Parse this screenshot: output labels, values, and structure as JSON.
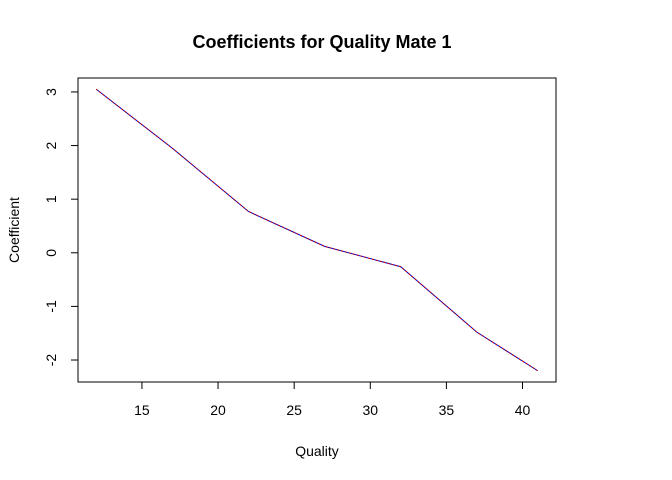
{
  "chart_data": {
    "type": "line",
    "title": "Coefficients for Quality Mate 1",
    "xlabel": "Quality",
    "ylabel": "Coefficient",
    "x": [
      12,
      17,
      22,
      27,
      32,
      37,
      41
    ],
    "series": [
      {
        "values": [
          3.05,
          1.95,
          0.77,
          0.12,
          -0.26,
          -1.48,
          -2.2
        ],
        "color": "#0000cc"
      },
      {
        "values": [
          3.05,
          1.95,
          0.77,
          0.12,
          -0.26,
          -1.48,
          -2.2
        ],
        "color": "#cc0000",
        "dashed": true
      }
    ],
    "xlim": [
      10.8,
      42.2
    ],
    "ylim": [
      -2.41,
      3.26
    ],
    "xticks": [
      15,
      20,
      25,
      30,
      35,
      40
    ],
    "yticks": [
      -2,
      -1,
      0,
      1,
      2,
      3
    ],
    "grid": false,
    "legend": "none"
  }
}
